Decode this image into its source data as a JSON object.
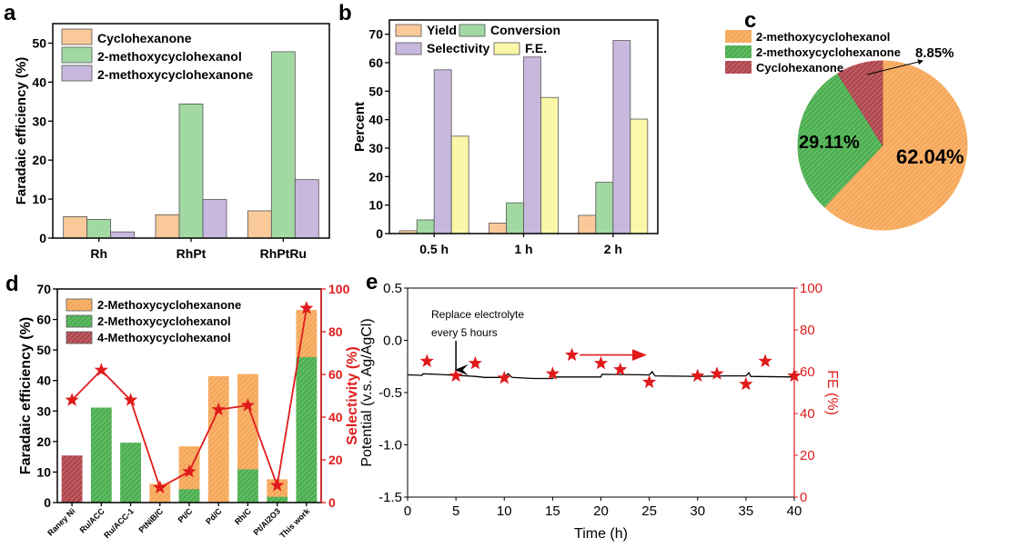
{
  "chart_data": [
    {
      "panel": "a",
      "type": "bar",
      "ylabel": "Faradaic efficiency (%)",
      "ylim": [
        0,
        55
      ],
      "yticks": [
        0,
        10,
        20,
        30,
        40,
        50
      ],
      "categories": [
        "Rh",
        "RhPt",
        "RhPtRu"
      ],
      "legend": "top-left",
      "series": [
        {
          "name": "Cyclohexanone",
          "color": "#f9c99a",
          "values": [
            5.5,
            6.0,
            7.0
          ]
        },
        {
          "name": "2-methoxycyclohexanol",
          "color": "#a2d9a3",
          "values": [
            4.8,
            34.4,
            47.8
          ]
        },
        {
          "name": "2-methoxycyclohexanone",
          "color": "#c8b8de",
          "values": [
            1.6,
            9.9,
            15.0
          ]
        }
      ]
    },
    {
      "panel": "b",
      "type": "bar",
      "ylabel": "Percent",
      "ylim": [
        0,
        75
      ],
      "yticks": [
        0,
        10,
        20,
        30,
        40,
        50,
        60,
        70
      ],
      "categories": [
        "0.5 h",
        "1 h",
        "2 h"
      ],
      "legend": "top-left",
      "series": [
        {
          "name": "Yield",
          "color": "#f9c99a",
          "values": [
            1.0,
            3.7,
            6.4
          ]
        },
        {
          "name": "Conversion",
          "color": "#a2d9a3",
          "values": [
            4.8,
            10.8,
            18.0
          ]
        },
        {
          "name": "Selectivity",
          "color": "#c8b8de",
          "values": [
            57.5,
            62.0,
            67.8
          ]
        },
        {
          "name": "F.E.",
          "color": "#fbf7a8",
          "values": [
            34.2,
            47.8,
            40.2
          ]
        }
      ]
    },
    {
      "panel": "c",
      "type": "pie",
      "legend": "top-left",
      "slices": [
        {
          "name": "2-methoxycyclohexanol",
          "value": 62.04,
          "label": "62.04%",
          "color": "#f6a85a"
        },
        {
          "name": "2-methoxycyclohexanone",
          "value": 29.11,
          "label": "29.11%",
          "color": "#4caf50"
        },
        {
          "name": "Cyclohexanone",
          "value": 8.85,
          "label": "8.85%",
          "color": "#b0464e"
        }
      ]
    },
    {
      "panel": "d",
      "type": "bar",
      "stacked": true,
      "ylabel": "Faradaic efficiency (%)",
      "ylim": [
        0,
        70
      ],
      "yticks": [
        0,
        10,
        20,
        30,
        40,
        50,
        60,
        70
      ],
      "y2label": "Selectivity (%)",
      "y2lim": [
        0,
        100
      ],
      "y2ticks": [
        0,
        20,
        40,
        60,
        80,
        100
      ],
      "categories": [
        "Raney Ni",
        "Ru/ACC",
        "Ru/ACC-1",
        "PtNiB/C",
        "Pt/C",
        "Pd/C",
        "Rh/C",
        "Pt/Al2O3",
        "This work"
      ],
      "legend": "top-left",
      "series": [
        {
          "name": "4-Methoxycyclohexanol",
          "color": "#b0464e",
          "values": [
            15.3,
            0,
            0,
            0,
            0,
            0,
            0,
            0,
            0
          ]
        },
        {
          "name": "2-Methoxycyclohexanol",
          "color": "#4caf50",
          "values": [
            0,
            31.0,
            19.5,
            0,
            4.5,
            0,
            11.0,
            2.0,
            47.8
          ]
        },
        {
          "name": "2-Methoxycyclohexanone",
          "color": "#f6a85a",
          "values": [
            0,
            0,
            0,
            6.0,
            13.8,
            41.3,
            31.0,
            5.5,
            15.2
          ]
        }
      ],
      "selectivity": {
        "color": "#e01b1b",
        "values": [
          48,
          62,
          48,
          7,
          14.5,
          43.5,
          45.5,
          8,
          91
        ]
      }
    },
    {
      "panel": "e",
      "type": "line",
      "xlabel": "Time (h)",
      "xlim": [
        0,
        40
      ],
      "xticks": [
        0,
        5,
        10,
        15,
        20,
        25,
        30,
        35,
        40
      ],
      "ylabel": "Potential (v.s. Ag/AgCl)",
      "ylim": [
        -1.5,
        0.5
      ],
      "yticks": [
        "-1.5",
        "-1.0",
        "-0.5",
        "0.0",
        "0.5"
      ],
      "y2label": "FE (%)",
      "y2lim": [
        0,
        100
      ],
      "y2ticks": [
        0,
        20,
        40,
        60,
        80,
        100
      ],
      "annotation": [
        "Replace electrolyte",
        "every 5 hours"
      ],
      "potential": [
        [
          0,
          -0.33
        ],
        [
          1.5,
          -0.335
        ],
        [
          1.6,
          -0.32
        ],
        [
          3,
          -0.325
        ],
        [
          5,
          -0.335
        ],
        [
          7,
          -0.345
        ],
        [
          8,
          -0.355
        ],
        [
          10,
          -0.355
        ],
        [
          10.4,
          -0.32
        ],
        [
          10.8,
          -0.355
        ],
        [
          13,
          -0.365
        ],
        [
          15,
          -0.365
        ],
        [
          15.2,
          -0.35
        ],
        [
          20,
          -0.35
        ],
        [
          20.1,
          -0.325
        ],
        [
          25,
          -0.33
        ],
        [
          25.3,
          -0.3
        ],
        [
          25.6,
          -0.34
        ],
        [
          30,
          -0.345
        ],
        [
          33,
          -0.34
        ],
        [
          35,
          -0.34
        ],
        [
          35.3,
          -0.31
        ],
        [
          35.5,
          -0.345
        ],
        [
          40,
          -0.35
        ]
      ],
      "fe_color": "#e01b1b",
      "fe": [
        [
          2,
          65
        ],
        [
          5,
          58
        ],
        [
          7,
          64
        ],
        [
          10,
          57
        ],
        [
          15,
          59
        ],
        [
          17,
          68
        ],
        [
          20,
          64
        ],
        [
          22,
          61
        ],
        [
          25,
          55
        ],
        [
          30,
          58
        ],
        [
          32,
          59
        ],
        [
          35,
          54
        ],
        [
          37,
          65
        ],
        [
          40,
          58
        ]
      ]
    }
  ],
  "panel_labels": [
    "a",
    "b",
    "c",
    "d",
    "e"
  ]
}
